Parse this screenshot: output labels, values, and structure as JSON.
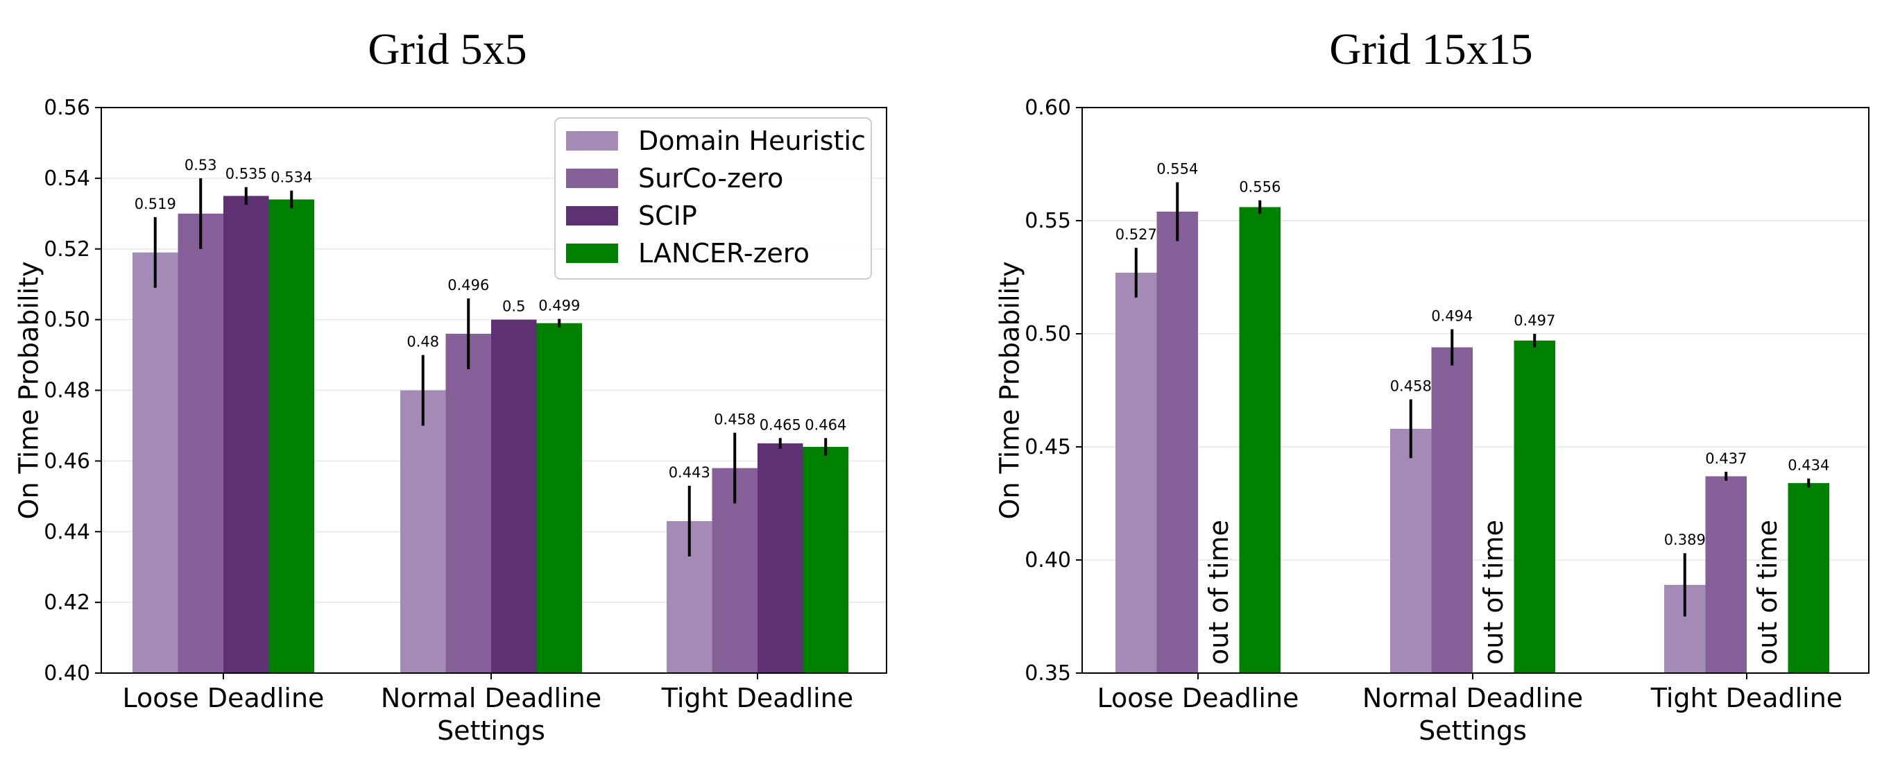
{
  "chart_data": [
    {
      "type": "bar",
      "title": "Grid 5x5",
      "xlabel": "Settings",
      "ylabel": "On Time Probability",
      "ylim": [
        0.4,
        0.56
      ],
      "yticks": [
        "0.40",
        "0.42",
        "0.44",
        "0.46",
        "0.48",
        "0.50",
        "0.52",
        "0.54",
        "0.56"
      ],
      "categories": [
        "Loose Deadline",
        "Normal Deadline",
        "Tight Deadline"
      ],
      "grid": "horizontal",
      "legend": "top-right",
      "series": [
        {
          "name": "Domain Heuristic",
          "color": "#a48bb5",
          "values": [
            0.519,
            0.48,
            0.443
          ],
          "labels": [
            "0.519",
            "0.48",
            "0.443"
          ],
          "errors": [
            0.01,
            0.01,
            0.01
          ]
        },
        {
          "name": "SurCo-zero",
          "color": "#845f98",
          "values": [
            0.53,
            0.496,
            0.458
          ],
          "labels": [
            "0.53",
            "0.496",
            "0.458"
          ],
          "errors": [
            0.01,
            0.01,
            0.01
          ]
        },
        {
          "name": "SCIP",
          "color": "#5e3173",
          "values": [
            0.535,
            0.5,
            0.465
          ],
          "labels": [
            "0.535",
            "0.5",
            "0.465"
          ],
          "errors": [
            0.0025,
            0,
            0.0015
          ]
        },
        {
          "name": "LANCER-zero",
          "color": "#008000",
          "values": [
            0.534,
            0.499,
            0.464
          ],
          "labels": [
            "0.534",
            "0.499",
            "0.464"
          ],
          "errors": [
            0.0025,
            0.0012,
            0.0025
          ]
        }
      ]
    },
    {
      "type": "bar",
      "title": "Grid 15x15",
      "xlabel": "Settings",
      "ylabel": "On Time Probability",
      "ylim": [
        0.35,
        0.6
      ],
      "yticks": [
        "0.35",
        "0.40",
        "0.45",
        "0.50",
        "0.55",
        "0.60"
      ],
      "categories": [
        "Loose Deadline",
        "Normal Deadline",
        "Tight Deadline"
      ],
      "grid": "horizontal",
      "annotation": "out of time",
      "series": [
        {
          "name": "Domain Heuristic",
          "color": "#a48bb5",
          "values": [
            0.527,
            0.458,
            0.389
          ],
          "labels": [
            "0.527",
            "0.458",
            "0.389"
          ],
          "errors": [
            0.011,
            0.013,
            0.014
          ]
        },
        {
          "name": "SurCo-zero",
          "color": "#845f98",
          "values": [
            0.554,
            0.494,
            0.437
          ],
          "labels": [
            "0.554",
            "0.494",
            "0.437"
          ],
          "errors": [
            0.013,
            0.008,
            0.002
          ]
        },
        {
          "name": "SCIP",
          "color": "#5e3173",
          "values": [
            null,
            null,
            null
          ],
          "labels": [
            "out of time",
            "out of time",
            "out of time"
          ],
          "errors": [
            0,
            0,
            0
          ]
        },
        {
          "name": "LANCER-zero",
          "color": "#008000",
          "values": [
            0.556,
            0.497,
            0.434
          ],
          "labels": [
            "0.556",
            "0.497",
            "0.434"
          ],
          "errors": [
            0.003,
            0.003,
            0.002
          ]
        }
      ]
    }
  ]
}
